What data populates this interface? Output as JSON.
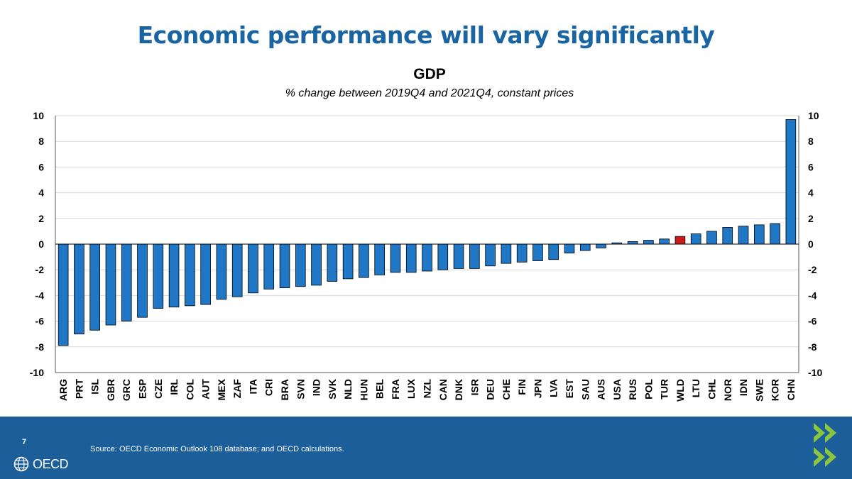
{
  "slide": {
    "title": "Economic performance will vary significantly",
    "page_number": "7",
    "source": "Source: OECD Economic Outlook 108 database; and OECD calculations.",
    "logo_text": "OECD"
  },
  "colors": {
    "title_blue": "#1a65a1",
    "bar_blue": "#1f77c6",
    "bar_highlight": "#cc1a1a",
    "footer_blue": "#1b5e99",
    "chevron_green": "#8cc63f"
  },
  "chart_data": {
    "type": "bar",
    "title": "GDP",
    "subtitle": "% change between 2019Q4 and 2021Q4, constant prices",
    "xlabel": "",
    "ylabel": "",
    "ylim": [
      -10,
      10
    ],
    "yticks": [
      10,
      8,
      6,
      4,
      2,
      0,
      -2,
      -4,
      -6,
      -8,
      -10
    ],
    "grid": true,
    "highlight": "WLD",
    "categories": [
      "ARG",
      "PRT",
      "ISL",
      "GBR",
      "GRC",
      "ESP",
      "CZE",
      "IRL",
      "COL",
      "AUT",
      "MEX",
      "ZAF",
      "ITA",
      "CRI",
      "BRA",
      "SVN",
      "IND",
      "SVK",
      "NLD",
      "HUN",
      "BEL",
      "FRA",
      "LUX",
      "NZL",
      "CAN",
      "DNK",
      "ISR",
      "DEU",
      "CHE",
      "FIN",
      "JPN",
      "LVA",
      "EST",
      "SAU",
      "AUS",
      "USA",
      "RUS",
      "POL",
      "TUR",
      "WLD",
      "LTU",
      "CHL",
      "NOR",
      "IDN",
      "SWE",
      "KOR",
      "CHN"
    ],
    "values": [
      -7.9,
      -7.0,
      -6.7,
      -6.3,
      -6.0,
      -5.7,
      -5.0,
      -4.9,
      -4.8,
      -4.7,
      -4.3,
      -4.1,
      -3.8,
      -3.5,
      -3.4,
      -3.3,
      -3.2,
      -2.9,
      -2.7,
      -2.6,
      -2.4,
      -2.2,
      -2.2,
      -2.1,
      -2.0,
      -1.9,
      -1.9,
      -1.7,
      -1.5,
      -1.4,
      -1.3,
      -1.2,
      -0.7,
      -0.5,
      -0.3,
      0.1,
      0.2,
      0.3,
      0.4,
      0.6,
      0.8,
      1.0,
      1.3,
      1.4,
      1.5,
      1.6,
      9.7
    ]
  }
}
